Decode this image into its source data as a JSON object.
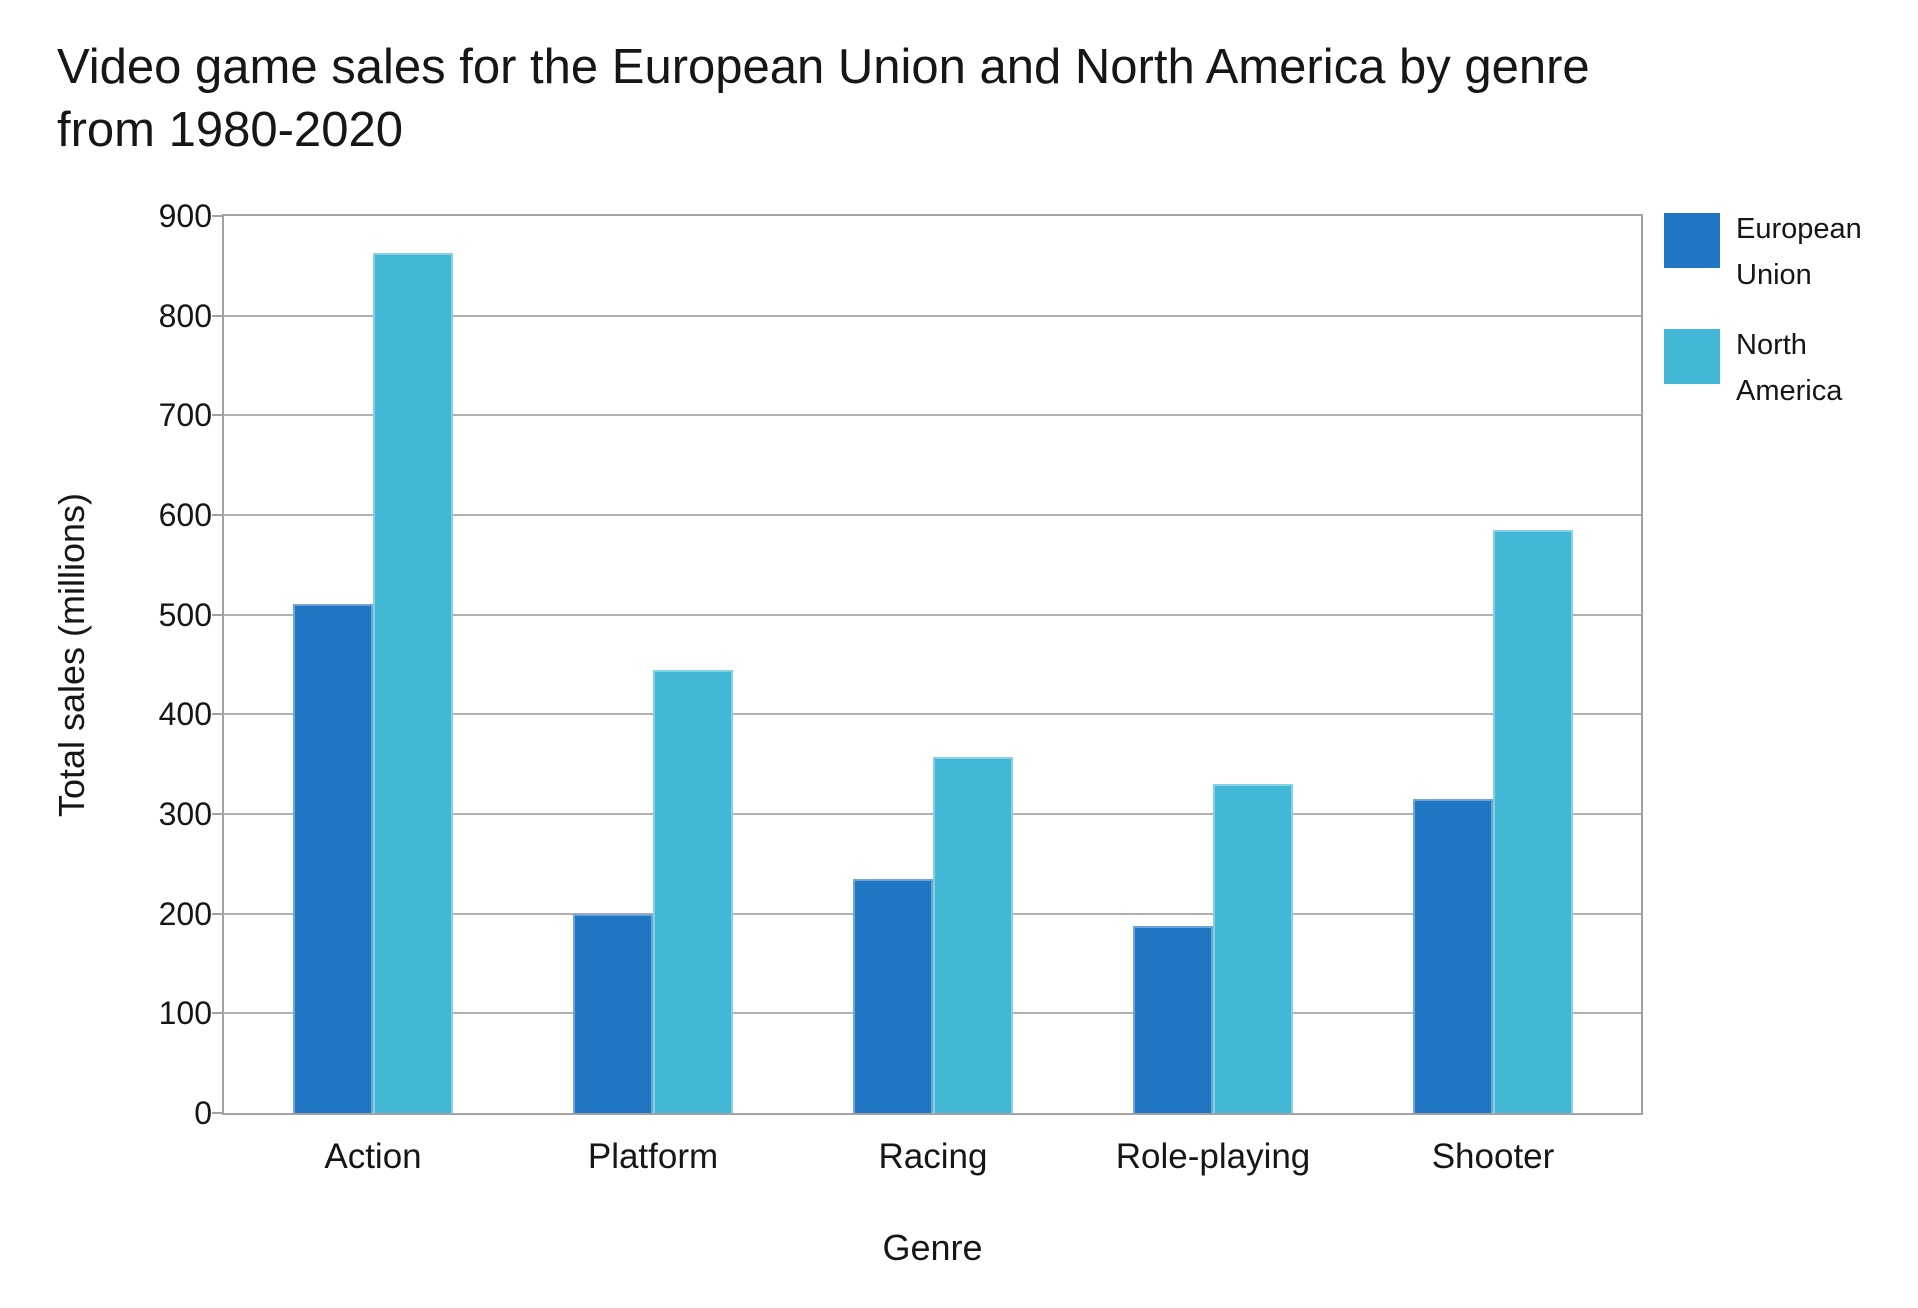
{
  "title": {
    "line1": "Video game sales for the European Union and North America by genre",
    "line2": "from 1980-2020"
  },
  "legend": {
    "items": [
      {
        "line1": "European",
        "line2": "Union",
        "color": "#2176C4"
      },
      {
        "line1": "North",
        "line2": "America",
        "color": "#43B8D6"
      }
    ]
  },
  "chart_data": {
    "type": "bar",
    "title": "Video game sales for the European Union and North America by genre from 1980-2020",
    "xlabel": "Genre",
    "ylabel": "Total sales (millions)",
    "categories": [
      "Action",
      "Platform",
      "Racing",
      "Role-playing",
      "Shooter"
    ],
    "series": [
      {
        "name": "European Union",
        "color": "#2176C4",
        "values": [
          511,
          200,
          235,
          188,
          315
        ]
      },
      {
        "name": "North America",
        "color": "#43B8D6",
        "values": [
          863,
          444,
          357,
          330,
          585
        ]
      }
    ],
    "ylim": [
      0,
      900
    ],
    "yticks": [
      0,
      100,
      200,
      300,
      400,
      500,
      600,
      700,
      800,
      900
    ],
    "grid": true,
    "legend_position": "right",
    "colors": {
      "gridline": "#B0B0B0",
      "axis": "#A2A2A2",
      "text": "#161616"
    }
  }
}
